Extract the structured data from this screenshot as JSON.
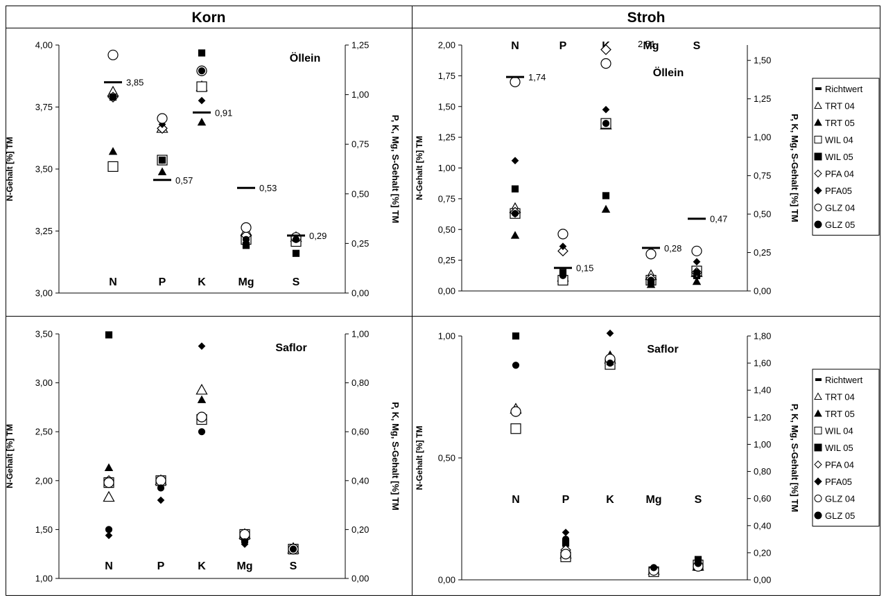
{
  "header": {
    "left": "Korn",
    "right": "Stroh"
  },
  "legend": {
    "entries": [
      {
        "label": "Richtwert",
        "symbol": "dash"
      },
      {
        "label": "TRT 04",
        "symbol": "triangle-open"
      },
      {
        "label": "TRT 05",
        "symbol": "triangle-filled"
      },
      {
        "label": "WIL 04",
        "symbol": "square-open"
      },
      {
        "label": "WIL 05",
        "symbol": "square-filled"
      },
      {
        "label": "PFA 04",
        "symbol": "diamond-open"
      },
      {
        "label": "PFA05",
        "symbol": "diamond-filled"
      },
      {
        "label": "GLZ 04",
        "symbol": "circle-open"
      },
      {
        "label": "GLZ 05",
        "symbol": "circle-filled"
      }
    ]
  },
  "chart_data": [
    {
      "type": "scatter",
      "group": "Korn",
      "crop": "Öllein",
      "ylabel_left": "N-Gehalt [%] TM",
      "ylabel_right": "P, K, Mg, S-Gehalt [%] TM",
      "left_axis": {
        "ylim": [
          3.0,
          4.0
        ],
        "ticks": [
          "3,00",
          "3,25",
          "3,50",
          "3,75",
          "4,00"
        ]
      },
      "right_axis": {
        "ylim": [
          0.0,
          1.25
        ],
        "ticks": [
          "0,00",
          "0,25",
          "0,50",
          "0,75",
          "1,00",
          "1,25"
        ]
      },
      "categories": [
        "N",
        "P",
        "K",
        "Mg",
        "S"
      ],
      "richtwert": [
        {
          "category": "N",
          "axis": "left",
          "value": 3.85,
          "label": "3,85"
        },
        {
          "category": "P",
          "axis": "right",
          "value": 0.57,
          "label": "0,57"
        },
        {
          "category": "K",
          "axis": "right",
          "value": 0.91,
          "label": "0,91"
        },
        {
          "category": "Mg",
          "axis": "right",
          "value": 0.53,
          "label": "0,53"
        },
        {
          "category": "S",
          "axis": "right",
          "value": 0.29,
          "label": "0,29"
        }
      ],
      "series": [
        {
          "name": "TRT 04",
          "values": [
            3.81,
            0.83,
            1.04,
            0.31,
            0.28
          ]
        },
        {
          "name": "TRT 05",
          "values": [
            3.57,
            0.61,
            0.86,
            0.29,
            0.27
          ]
        },
        {
          "name": "WIL 04",
          "values": [
            3.51,
            0.67,
            1.04,
            0.27,
            0.26
          ]
        },
        {
          "name": "WIL 05",
          "values": [
            3.79,
            0.67,
            1.21,
            0.24,
            0.2
          ]
        },
        {
          "name": "PFA 04",
          "values": [
            3.79,
            0.83,
            1.12,
            0.29,
            0.28
          ]
        },
        {
          "name": "PFA05",
          "values": [
            3.79,
            0.85,
            0.97,
            0.25,
            0.27
          ]
        },
        {
          "name": "GLZ 04",
          "values": [
            3.96,
            0.88,
            1.12,
            0.33,
            0.28
          ]
        },
        {
          "name": "GLZ 05",
          "values": [
            3.79,
            0.67,
            1.12,
            0.27,
            0.27
          ]
        }
      ]
    },
    {
      "type": "scatter",
      "group": "Stroh",
      "crop": "Öllein",
      "ylabel_left": "N-Gehalt [%] TM",
      "ylabel_right": "P, K, Mg, S-Gehalt [%] TM",
      "left_axis": {
        "ylim": [
          0.0,
          2.0
        ],
        "ticks": [
          "0,00",
          "0,25",
          "0,50",
          "0,75",
          "1,00",
          "1,25",
          "1,50",
          "1,75",
          "2,00"
        ]
      },
      "right_axis": {
        "ylim": [
          0.0,
          1.6
        ],
        "ticks": [
          "0,00",
          "0,25",
          "0,50",
          "0,75",
          "1,00",
          "1,25",
          "1,50"
        ]
      },
      "categories": [
        "N",
        "P",
        "K",
        "Mg",
        "S"
      ],
      "richtwert": [
        {
          "category": "N",
          "axis": "left",
          "value": 1.74,
          "label": "1,74"
        },
        {
          "category": "P",
          "axis": "right",
          "value": 0.15,
          "label": "0,15"
        },
        {
          "category": "K",
          "axis": "right",
          "value": 2.51,
          "label": "2,51",
          "off_scale": true
        },
        {
          "category": "Mg",
          "axis": "right",
          "value": 0.28,
          "label": "0,28"
        },
        {
          "category": "S",
          "axis": "right",
          "value": 0.47,
          "label": "0,47"
        }
      ],
      "series": [
        {
          "name": "TRT 04",
          "values": [
            0.67,
            0.09,
            1.08,
            0.1,
            0.12
          ]
        },
        {
          "name": "TRT 05",
          "values": [
            0.45,
            0.06,
            0.53,
            0.04,
            0.06
          ]
        },
        {
          "name": "WIL 04",
          "values": [
            0.63,
            0.07,
            1.09,
            0.07,
            0.13
          ]
        },
        {
          "name": "WIL 05",
          "values": [
            0.83,
            0.12,
            0.62,
            0.06,
            0.1
          ]
        },
        {
          "name": "PFA 04",
          "values": [
            0.64,
            0.26,
            1.57,
            0.08,
            0.12
          ]
        },
        {
          "name": "PFA05",
          "values": [
            1.06,
            0.29,
            1.18,
            0.05,
            0.19
          ]
        },
        {
          "name": "GLZ 04",
          "values": [
            1.7,
            0.37,
            1.48,
            0.24,
            0.26
          ]
        },
        {
          "name": "GLZ 05",
          "values": [
            0.63,
            0.1,
            1.09,
            0.07,
            0.12
          ]
        }
      ]
    },
    {
      "type": "scatter",
      "group": "Korn",
      "crop": "Saflor",
      "ylabel_left": "N-Gehalt [%] TM",
      "ylabel_right": "P, K, Mg, S-Gehalt [%] TM",
      "left_axis": {
        "ylim": [
          1.0,
          3.5
        ],
        "ticks": [
          "1,00",
          "1,50",
          "2,00",
          "2,50",
          "3,00",
          "3,50"
        ]
      },
      "right_axis": {
        "ylim": [
          0.0,
          1.0
        ],
        "ticks": [
          "0,00",
          "0,20",
          "0,40",
          "0,60",
          "0,80",
          "1,00"
        ]
      },
      "categories": [
        "N",
        "P",
        "K",
        "Mg",
        "S"
      ],
      "series": [
        {
          "name": "TRT 04",
          "values": [
            1.83,
            0.4,
            0.77,
            0.18,
            0.12
          ]
        },
        {
          "name": "TRT 05",
          "values": [
            2.13,
            0.4,
            0.73,
            0.17,
            0.13
          ]
        },
        {
          "name": "WIL 04",
          "values": [
            1.98,
            0.4,
            0.65,
            0.18,
            0.12
          ]
        },
        {
          "name": "WIL 05",
          "values": [
            3.49,
            0.4,
            0.66,
            0.16,
            0.12
          ]
        },
        {
          "name": "PFA 04",
          "values": [
            2.0,
            0.4,
            0.66,
            0.17,
            0.12
          ]
        },
        {
          "name": "PFA05",
          "values": [
            1.44,
            0.32,
            0.95,
            0.14,
            0.12
          ]
        },
        {
          "name": "GLZ 04",
          "values": [
            1.98,
            0.4,
            0.66,
            0.18,
            0.12
          ]
        },
        {
          "name": "GLZ 05",
          "values": [
            1.5,
            0.37,
            0.6,
            0.15,
            0.12
          ]
        }
      ]
    },
    {
      "type": "scatter",
      "group": "Stroh",
      "crop": "Saflor",
      "ylabel_left": "N-Gehalt [%] TM",
      "ylabel_right": "P, K, Mg, S-Gehalt [%] TM",
      "left_axis": {
        "ylim": [
          0.0,
          1.0
        ],
        "ticks": [
          "0,00",
          "0,50",
          "1,00"
        ]
      },
      "right_axis": {
        "ylim": [
          0.0,
          1.8
        ],
        "ticks": [
          "0,00",
          "0,20",
          "0,40",
          "0,60",
          "0,80",
          "1,00",
          "1,20",
          "1,40",
          "1,60",
          "1,80"
        ]
      },
      "categories": [
        "N",
        "P",
        "K",
        "Mg",
        "S"
      ],
      "series": [
        {
          "name": "TRT 04",
          "values": [
            0.7,
            0.19,
            1.63,
            0.07,
            0.1
          ]
        },
        {
          "name": "TRT 05",
          "values": [
            0.69,
            0.22,
            1.66,
            0.06,
            0.09
          ]
        },
        {
          "name": "WIL 04",
          "values": [
            0.62,
            0.17,
            1.59,
            0.06,
            0.11
          ]
        },
        {
          "name": "WIL 05",
          "values": [
            1.0,
            0.27,
            1.61,
            0.07,
            0.15
          ]
        },
        {
          "name": "PFA 04",
          "values": [
            0.69,
            0.22,
            1.63,
            0.07,
            0.1
          ]
        },
        {
          "name": "PFA05",
          "values": [
            0.69,
            0.35,
            1.82,
            0.08,
            0.12
          ]
        },
        {
          "name": "GLZ 04",
          "values": [
            0.69,
            0.19,
            1.63,
            0.07,
            0.1
          ]
        },
        {
          "name": "GLZ 05",
          "values": [
            0.88,
            0.3,
            1.6,
            0.09,
            0.12
          ]
        }
      ]
    }
  ]
}
